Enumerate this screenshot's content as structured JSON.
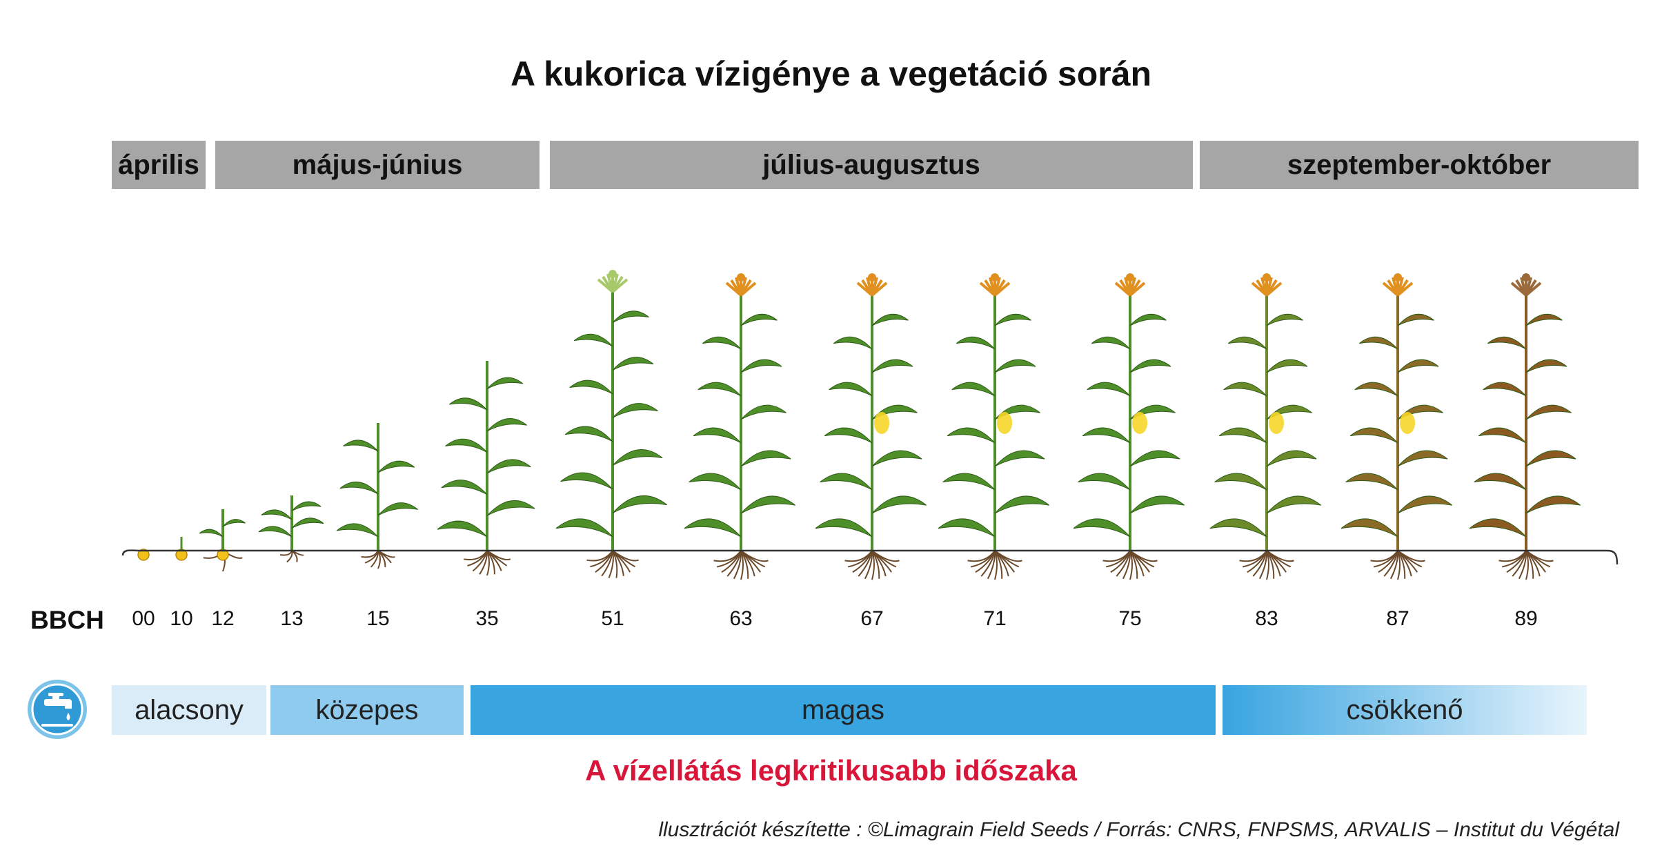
{
  "title": "A kukorica vízigénye a vegetáció során",
  "months": [
    "április",
    "május-június",
    "július-augusztus",
    "szeptember-október"
  ],
  "bbch": {
    "label": "BBCH",
    "stages": [
      "00",
      "10",
      "12",
      "13",
      "15",
      "35",
      "51",
      "63",
      "67",
      "71",
      "75",
      "83",
      "87",
      "89"
    ]
  },
  "water_demand": {
    "icon": "water-tap-icon",
    "levels": [
      "alacsony",
      "közepes",
      "magas",
      "csökkenő"
    ]
  },
  "critical_note": "A vízellátás legkritikusabb időszaka",
  "credit": "llusztrációt készítette : ©Limagrain Field Seeds / Forrás: CNRS, FNPSMS, ARVALIS – Institut du Végétal",
  "colors": {
    "month_bar": "#a6a6a6",
    "low": "#d9ecf8",
    "medium": "#8ecbee",
    "high": "#38a4e0",
    "critical": "#d8163a",
    "leaf_green": "#4f8f2a",
    "leaf_dry": "#8a5a22",
    "tassel": "#e0901e",
    "cob": "#f6d628"
  }
}
